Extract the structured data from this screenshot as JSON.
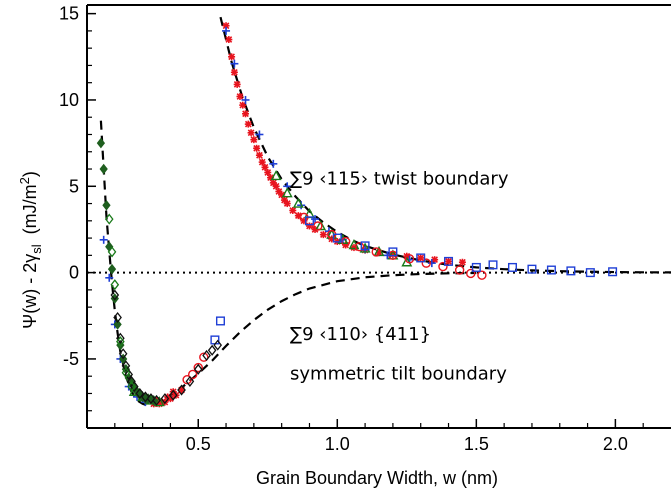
{
  "chart_data": {
    "type": "scatter",
    "title": "",
    "xlabel": "Grain Boundary Width, w (nm)",
    "ylabel_parts": {
      "main": "Ψ(w) - 2γ",
      "sub": "sl",
      "units_pre": "  (mJ/m",
      "units_sup": "2",
      "units_post": ")"
    },
    "xlim": [
      0.1,
      2.2
    ],
    "ylim": [
      -9.0,
      15.5
    ],
    "xticks": [
      0.5,
      1.0,
      1.5,
      2.0
    ],
    "xtick_labels": [
      "0.5",
      "1.0",
      "1.5",
      "2.0"
    ],
    "yticks": [
      -5,
      0,
      5,
      10,
      15
    ],
    "ytick_labels": [
      "-5",
      "0",
      "5",
      "10",
      "15"
    ],
    "grid": false,
    "annotations": [
      {
        "text": "∑9 ‹115› twist boundary",
        "x": 0.83,
        "y": 5.1
      },
      {
        "text": "∑9 ‹110› {411}",
        "x": 0.83,
        "y": -3.9
      },
      {
        "text": "symmetric tilt boundary",
        "x": 0.83,
        "y": -6.2
      }
    ],
    "zero_line": {
      "style": "dotted",
      "y": 0
    },
    "fits": [
      {
        "style": "dashed",
        "x": [
          0.58,
          0.62,
          0.66,
          0.7,
          0.75,
          0.8,
          0.85,
          0.9,
          0.95,
          1.0,
          1.05,
          1.1,
          1.2,
          1.3,
          1.4,
          1.5,
          1.6,
          1.7,
          1.8,
          1.9,
          2.0,
          2.1,
          2.2
        ],
        "y": [
          14.8,
          12.2,
          10.1,
          8.4,
          6.7,
          5.4,
          4.4,
          3.55,
          2.9,
          2.35,
          1.9,
          1.55,
          1.05,
          0.7,
          0.45,
          0.3,
          0.2,
          0.13,
          0.08,
          0.05,
          0.03,
          0.02,
          0.01
        ]
      },
      {
        "style": "dashed",
        "x": [
          0.15,
          0.16,
          0.17,
          0.18,
          0.19,
          0.2,
          0.21,
          0.22,
          0.24,
          0.26,
          0.28,
          0.3,
          0.32,
          0.34,
          0.36,
          0.38,
          0.4,
          0.43,
          0.46,
          0.5,
          0.55,
          0.6,
          0.65,
          0.7,
          0.75,
          0.8,
          0.85,
          0.9,
          1.0,
          1.1,
          1.2,
          1.3,
          1.4,
          1.5
        ],
        "y": [
          8.8,
          6.0,
          3.2,
          1.3,
          -0.6,
          -2.2,
          -3.5,
          -4.6,
          -6.0,
          -6.9,
          -7.4,
          -7.6,
          -7.7,
          -7.6,
          -7.5,
          -7.3,
          -7.1,
          -6.8,
          -6.4,
          -5.85,
          -5.1,
          -4.25,
          -3.45,
          -2.75,
          -2.15,
          -1.65,
          -1.25,
          -0.92,
          -0.5,
          -0.27,
          -0.15,
          -0.08,
          -0.04,
          -0.02
        ]
      }
    ],
    "series": [
      {
        "marker": "asterisk",
        "color": "#e8141e",
        "x": [
          0.6,
          0.61,
          0.62,
          0.63,
          0.64,
          0.65,
          0.66,
          0.67,
          0.68,
          0.69,
          0.7,
          0.71,
          0.72,
          0.73,
          0.74,
          0.75,
          0.76,
          0.77,
          0.78,
          0.79,
          0.8,
          0.81,
          0.82,
          0.84,
          0.86,
          0.88,
          0.9,
          0.92,
          0.95,
          0.98,
          1.0,
          1.03,
          1.06,
          1.1,
          1.15,
          1.2,
          1.25,
          1.3,
          1.35,
          1.4,
          1.45,
          0.32,
          0.34,
          0.36,
          0.38,
          0.4,
          0.42,
          0.35,
          0.37,
          0.39,
          0.41,
          0.44
        ],
        "y": [
          14.3,
          13.5,
          12.5,
          11.6,
          10.9,
          10.2,
          9.7,
          9.2,
          8.6,
          8.1,
          7.7,
          7.2,
          6.8,
          6.4,
          6.1,
          5.8,
          5.5,
          5.2,
          5.0,
          4.7,
          4.5,
          4.2,
          4.0,
          3.6,
          3.3,
          3.0,
          2.7,
          2.5,
          2.2,
          1.95,
          1.8,
          1.6,
          1.45,
          1.3,
          1.15,
          1.05,
          0.95,
          0.85,
          0.75,
          0.65,
          0.6,
          -7.4,
          -7.6,
          -7.6,
          -7.5,
          -7.3,
          -7.1,
          -7.4,
          -7.5,
          -7.2,
          -6.9,
          -6.8
        ]
      },
      {
        "marker": "plus",
        "color": "#1f3fd6",
        "x": [
          0.16,
          0.18,
          0.2,
          0.22,
          0.25,
          0.28,
          0.31,
          0.6,
          0.63,
          0.67,
          0.72,
          0.77,
          0.82,
          0.87,
          0.92,
          0.97,
          1.02,
          1.1,
          1.18,
          1.26,
          1.34
        ],
        "y": [
          1.9,
          -0.3,
          -3.0,
          -5.0,
          -6.6,
          -7.2,
          -7.5,
          14.0,
          12.1,
          10.0,
          8.0,
          6.3,
          5.0,
          3.9,
          3.1,
          2.4,
          1.9,
          1.35,
          1.0,
          0.75,
          0.55
        ]
      },
      {
        "marker": "triangle",
        "color": "#1a7a1a",
        "x": [
          0.78,
          0.82,
          0.86,
          0.9,
          0.94,
          0.98,
          1.02,
          1.06,
          1.1,
          1.15,
          1.2,
          1.25,
          0.27,
          0.3,
          0.33,
          0.36
        ],
        "y": [
          5.6,
          4.6,
          4.0,
          3.4,
          2.7,
          2.2,
          1.9,
          1.6,
          1.4,
          1.2,
          1.0,
          0.6,
          -6.9,
          -7.2,
          -7.4,
          -7.5
        ]
      },
      {
        "marker": "circle",
        "color": "#e8141e",
        "x": [
          0.46,
          0.48,
          0.5,
          0.52,
          0.88,
          0.93,
          0.98,
          1.03,
          1.08,
          1.14,
          1.2,
          1.26,
          1.32,
          1.38,
          1.44,
          1.48,
          1.52
        ],
        "y": [
          -6.2,
          -5.9,
          -5.5,
          -4.9,
          3.2,
          2.7,
          2.2,
          1.8,
          1.5,
          1.2,
          1.0,
          0.8,
          0.55,
          0.35,
          0.15,
          -0.05,
          -0.15
        ]
      },
      {
        "marker": "square",
        "color": "#1f3fd6",
        "x": [
          0.56,
          0.58,
          0.9,
          1.0,
          1.1,
          1.2,
          1.3,
          1.4,
          1.5,
          1.56,
          1.63,
          1.7,
          1.77,
          1.84,
          1.91,
          1.99
        ],
        "y": [
          -3.9,
          -2.8,
          3.0,
          2.0,
          1.55,
          1.2,
          0.85,
          0.65,
          0.3,
          0.45,
          0.3,
          0.2,
          0.15,
          0.1,
          0.0,
          0.05
        ]
      },
      {
        "marker": "diamond",
        "color": "#1f5f1f",
        "x": [
          0.15,
          0.16,
          0.17,
          0.18,
          0.19,
          0.2,
          0.21,
          0.22,
          0.23,
          0.24,
          0.25,
          0.26,
          0.27,
          0.28,
          0.29,
          0.3,
          0.31,
          0.32,
          0.34
        ],
        "y": [
          7.5,
          6.0,
          3.9,
          1.5,
          0.2,
          -1.5,
          -3.0,
          -4.2,
          -5.0,
          -5.6,
          -6.1,
          -6.4,
          -6.7,
          -6.9,
          -7.1,
          -7.2,
          -7.3,
          -7.3,
          -7.4
        ]
      },
      {
        "marker": "diamond-open",
        "color": "#111111",
        "x": [
          0.2,
          0.21,
          0.22,
          0.23,
          0.24,
          0.25,
          0.26,
          0.27,
          0.29,
          0.31,
          0.33,
          0.35,
          0.38,
          0.41,
          0.44,
          0.47,
          0.5,
          0.53,
          0.55,
          0.57
        ],
        "y": [
          -1.3,
          -2.6,
          -3.8,
          -4.7,
          -5.4,
          -5.9,
          -6.3,
          -6.6,
          -7.0,
          -7.2,
          -7.3,
          -7.4,
          -7.3,
          -7.1,
          -6.8,
          -6.3,
          -5.6,
          -4.8,
          -4.5,
          -4.2
        ]
      },
      {
        "marker": "diamond-open",
        "color": "#1a7a1a",
        "x": [
          0.18,
          0.19,
          0.2,
          0.22,
          0.24,
          0.26
        ],
        "y": [
          3.1,
          1.2,
          -0.7,
          -4.0,
          -5.8,
          -6.6
        ]
      }
    ]
  }
}
